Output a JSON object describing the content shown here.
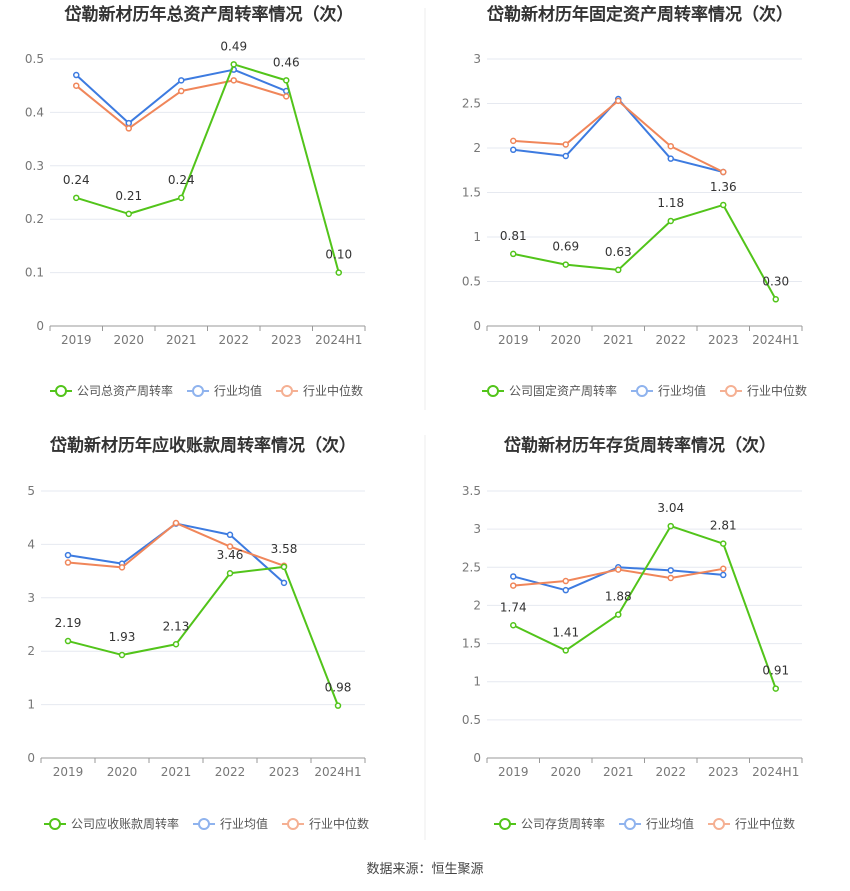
{
  "chart_data": [
    {
      "type": "line",
      "title": "岱勒新材历年总资产周转率情况（次）",
      "categories": [
        "2019",
        "2020",
        "2021",
        "2022",
        "2023",
        "2024H1"
      ],
      "ylim": [
        0,
        0.5
      ],
      "yticks": [
        "0",
        "0.1",
        "0.2",
        "0.3",
        "0.4",
        "0.5"
      ],
      "series": [
        {
          "name": "公司总资产周转率",
          "values": [
            0.24,
            0.21,
            0.24,
            0.49,
            0.46,
            0.1
          ],
          "labels": [
            "0.24",
            "0.21",
            "0.24",
            "0.49",
            "0.46",
            "0.10"
          ],
          "color": "#52c41a"
        },
        {
          "name": "行业均值",
          "values": [
            0.47,
            0.38,
            0.46,
            0.48,
            0.44,
            null
          ],
          "color": "#3d7be0"
        },
        {
          "name": "行业中位数",
          "values": [
            0.45,
            0.37,
            0.44,
            0.46,
            0.43,
            null
          ],
          "color": "#f0865a"
        }
      ]
    },
    {
      "type": "line",
      "title": "岱勒新材历年固定资产周转率情况（次）",
      "categories": [
        "2019",
        "2020",
        "2021",
        "2022",
        "2023",
        "2024H1"
      ],
      "ylim": [
        0,
        3
      ],
      "yticks": [
        "0",
        "0.5",
        "1",
        "1.5",
        "2",
        "2.5",
        "3"
      ],
      "series": [
        {
          "name": "公司固定资产周转率",
          "values": [
            0.81,
            0.69,
            0.63,
            1.18,
            1.36,
            0.3
          ],
          "labels": [
            "0.81",
            "0.69",
            "0.63",
            "1.18",
            "1.36",
            "0.30"
          ],
          "color": "#52c41a"
        },
        {
          "name": "行业均值",
          "values": [
            1.98,
            1.91,
            2.55,
            1.88,
            1.73,
            null
          ],
          "color": "#3d7be0"
        },
        {
          "name": "行业中位数",
          "values": [
            2.08,
            2.04,
            2.53,
            2.02,
            1.73,
            null
          ],
          "color": "#f0865a"
        }
      ]
    },
    {
      "type": "line",
      "title": "岱勒新材历年应收账款周转率情况（次）",
      "categories": [
        "2019",
        "2020",
        "2021",
        "2022",
        "2023",
        "2024H1"
      ],
      "ylim": [
        0,
        5
      ],
      "yticks": [
        "0",
        "1",
        "2",
        "3",
        "4",
        "5"
      ],
      "series": [
        {
          "name": "公司应收账款周转率",
          "values": [
            2.19,
            1.93,
            2.13,
            3.46,
            3.58,
            0.98
          ],
          "labels": [
            "2.19",
            "1.93",
            "2.13",
            "3.46",
            "3.58",
            "0.98"
          ],
          "color": "#52c41a"
        },
        {
          "name": "行业均值",
          "values": [
            3.8,
            3.64,
            4.39,
            4.18,
            3.28,
            null
          ],
          "color": "#3d7be0"
        },
        {
          "name": "行业中位数",
          "values": [
            3.66,
            3.57,
            4.4,
            3.96,
            3.6,
            null
          ],
          "color": "#f0865a"
        }
      ]
    },
    {
      "type": "line",
      "title": "岱勒新材历年存货周转率情况（次）",
      "categories": [
        "2019",
        "2020",
        "2021",
        "2022",
        "2023",
        "2024H1"
      ],
      "ylim": [
        0,
        3.5
      ],
      "yticks": [
        "0",
        "0.5",
        "1",
        "1.5",
        "2",
        "2.5",
        "3",
        "3.5"
      ],
      "series": [
        {
          "name": "公司存货周转率",
          "values": [
            1.74,
            1.41,
            1.88,
            3.04,
            2.81,
            0.91
          ],
          "labels": [
            "1.74",
            "1.41",
            "1.88",
            "3.04",
            "2.81",
            "0.91"
          ],
          "color": "#52c41a"
        },
        {
          "name": "行业均值",
          "values": [
            2.38,
            2.2,
            2.5,
            2.46,
            2.4,
            null
          ],
          "color": "#3d7be0"
        },
        {
          "name": "行业中位数",
          "values": [
            2.26,
            2.32,
            2.47,
            2.36,
            2.48,
            null
          ],
          "color": "#f0865a"
        }
      ]
    }
  ],
  "footer": {
    "source": "数据来源：恒生聚源"
  }
}
